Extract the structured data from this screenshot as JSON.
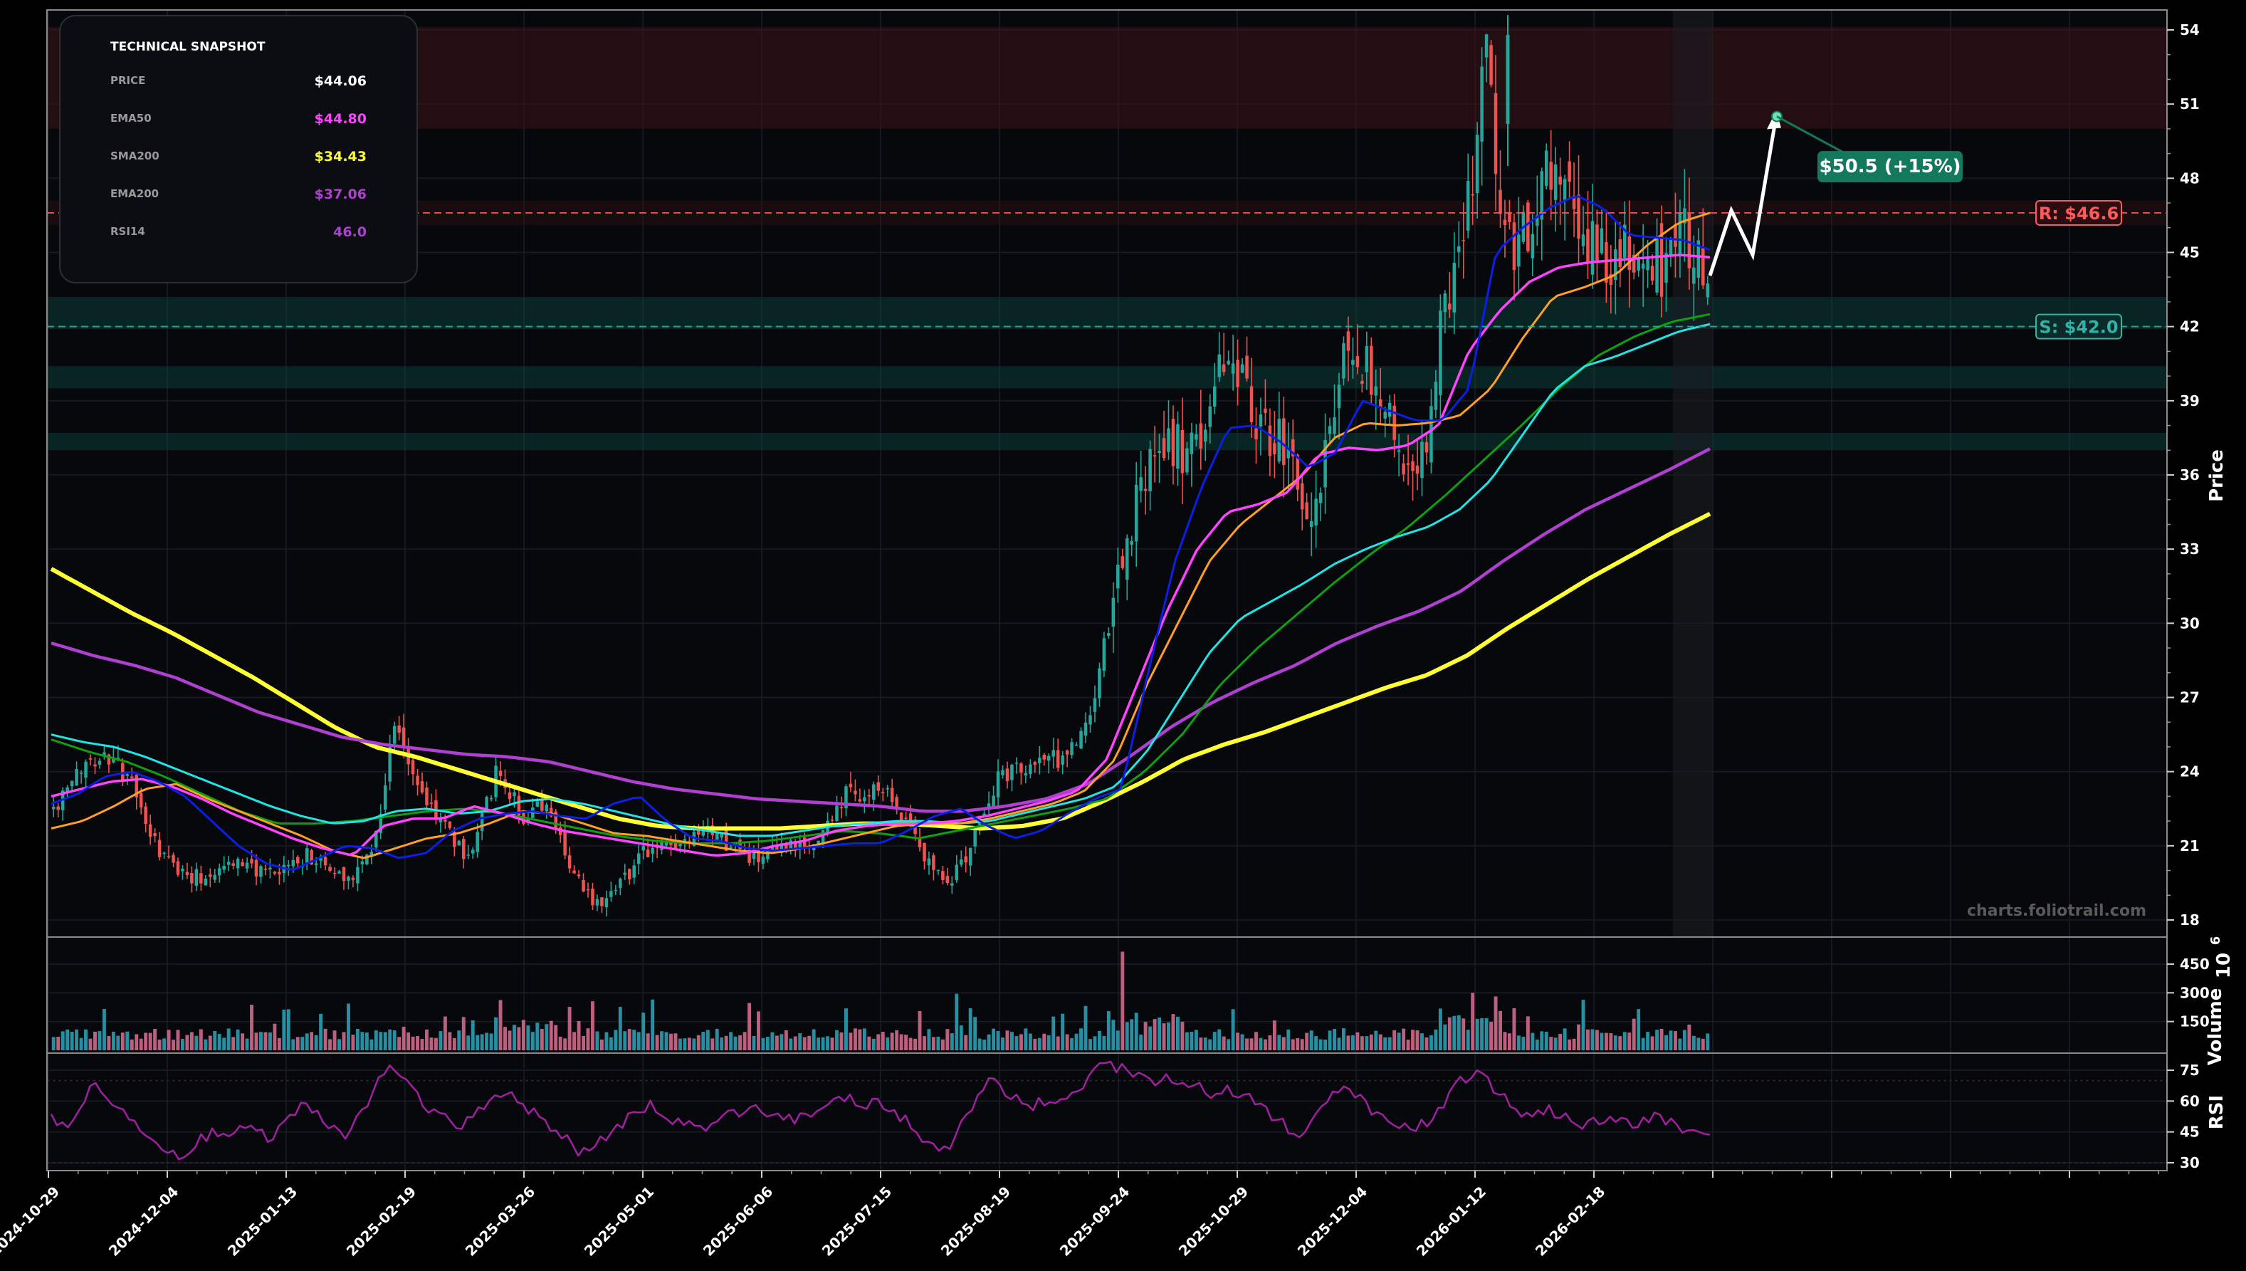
{
  "snapshot": {
    "title": "TECHNICAL SNAPSHOT",
    "rows": [
      {
        "key": "PRICE",
        "value": "$44.06",
        "color": "#ffffff"
      },
      {
        "key": "EMA50",
        "value": "$44.80",
        "color": "#ff44ff"
      },
      {
        "key": "SMA200",
        "value": "$34.43",
        "color": "#ffff33"
      },
      {
        "key": "EMA200",
        "value": "$37.06",
        "color": "#b040d0"
      },
      {
        "key": "RSI14",
        "value": "46.0",
        "color": "#b040d0"
      }
    ]
  },
  "watermark": "charts.foliotrail.com",
  "resistance_label": "R: $46.6",
  "support_label": "S: $42.0",
  "target_label": "$50.5 (+15%)",
  "colors": {
    "background": "#07080c",
    "up": "#26a69a",
    "down": "#ef5350",
    "resistance": "#ff5a5a",
    "support": "#2fb5a5",
    "target": "#14785c",
    "rsi": "#a020a0"
  },
  "chart_data": {
    "type": "line",
    "x_tick_labels": [
      "2024-10-29",
      "2024-12-04",
      "2025-01-13",
      "2025-02-19",
      "2025-03-26",
      "2025-05-01",
      "2025-06-06",
      "2025-07-15",
      "2025-08-19",
      "2025-09-24",
      "2025-10-29",
      "2025-12-04",
      "2026-01-12",
      "2026-02-18"
    ],
    "price_panel": {
      "ylabel": "Price",
      "ylim": [
        17.5,
        55
      ],
      "yticks": [
        18,
        21,
        24,
        27,
        30,
        33,
        36,
        39,
        42,
        45,
        48,
        51,
        54
      ],
      "close": [
        22.5,
        23.2,
        24.3,
        24.7,
        24.4,
        23.8,
        22.4,
        20.8,
        20.2,
        19.9,
        19.7,
        20.1,
        20.4,
        20.3,
        19.9,
        19.7,
        20.2,
        20.6,
        20.4,
        19.9,
        19.8,
        20.3,
        21.8,
        25.9,
        24.5,
        23.0,
        22.3,
        21.4,
        20.4,
        22.3,
        23.9,
        23.1,
        21.9,
        22.6,
        22.0,
        20.2,
        19.0,
        18.8,
        19.5,
        20.0,
        20.7,
        21.1,
        20.9,
        21.0,
        21.5,
        21.3,
        21.0,
        20.6,
        20.4,
        20.7,
        20.9,
        20.9,
        21.4,
        22.5,
        23.3,
        22.9,
        23.4,
        22.6,
        22.1,
        20.6,
        20.0,
        19.7,
        21.0,
        22.5,
        23.7,
        24.2,
        24.2,
        24.5,
        24.5,
        25.0,
        25.8,
        28.5,
        31.5,
        34.0,
        36.0,
        36.8,
        37.3,
        36.8,
        38.1,
        40.6,
        40.5,
        38.8,
        37.6,
        37.2,
        36.0,
        34.6,
        36.2,
        39.4,
        41.8,
        40.0,
        38.4,
        37.2,
        36.3,
        37.5,
        42.4,
        44.8,
        47.8,
        52.8,
        46.0,
        45.3,
        46.6,
        48.9,
        48.9,
        46.9,
        45.2,
        44.6,
        45.4,
        44.0,
        44.7,
        44.0,
        46.8,
        45.2,
        44.1
      ],
      "series": [
        {
          "name": "EMA20",
          "color": "#0b1fe6",
          "values": [
            22.7,
            23.1,
            23.8,
            24.0,
            23.6,
            23.0,
            22.0,
            21.0,
            20.3,
            20.0,
            20.5,
            21.0,
            20.9,
            20.5,
            20.7,
            21.6,
            22.1,
            22.3,
            22.4,
            22.2,
            22.1,
            22.7,
            23.0,
            22.0,
            21.3,
            21.2,
            20.9,
            20.8,
            20.9,
            21.0,
            21.1,
            21.1,
            21.6,
            22.2,
            22.5,
            21.8,
            21.3,
            21.6,
            22.3,
            22.9,
            23.3,
            28.0,
            32.5,
            35.5,
            37.9,
            38.0,
            37.3,
            36.3,
            36.9,
            39.0,
            38.6,
            38.2,
            38.2,
            39.5,
            45.0,
            46.0,
            46.8,
            47.3,
            46.8,
            45.7,
            45.6,
            45.5,
            45.1
          ]
        },
        {
          "name": "EMA50",
          "color": "#ff44ff",
          "values": [
            23.0,
            23.3,
            23.6,
            23.7,
            23.4,
            22.9,
            22.3,
            21.8,
            21.3,
            20.9,
            20.6,
            21.8,
            22.1,
            22.1,
            22.6,
            22.3,
            21.9,
            21.6,
            21.4,
            21.2,
            21.0,
            20.8,
            20.6,
            20.7,
            21.0,
            21.2,
            21.6,
            21.8,
            21.9,
            21.9,
            22.0,
            22.2,
            22.5,
            22.8,
            23.2,
            24.5,
            27.5,
            30.5,
            33.0,
            34.5,
            34.8,
            35.3,
            36.8,
            37.1,
            37.0,
            37.2,
            38.0,
            41.0,
            42.6,
            43.8,
            44.4,
            44.6,
            44.7,
            44.8,
            44.9,
            44.8
          ]
        },
        {
          "name": "EMA34",
          "color": "#ffa024",
          "values": [
            21.7,
            22.0,
            22.6,
            23.3,
            23.5,
            22.9,
            22.4,
            21.9,
            21.4,
            20.8,
            20.5,
            20.9,
            21.3,
            21.5,
            21.9,
            22.4,
            22.3,
            21.9,
            21.5,
            21.4,
            21.2,
            21.0,
            20.8,
            20.7,
            20.9,
            21.2,
            21.5,
            21.8,
            21.9,
            21.9,
            22.1,
            22.4,
            22.7,
            23.2,
            24.5,
            27.5,
            30.0,
            32.5,
            34.0,
            35.0,
            36.0,
            37.5,
            38.1,
            38.0,
            38.1,
            38.4,
            39.5,
            41.5,
            43.2,
            43.6,
            44.1,
            45.3,
            46.2,
            46.6
          ]
        },
        {
          "name": "EMA100",
          "color": "#1fe6e6",
          "values": [
            25.5,
            25.2,
            25.0,
            24.6,
            24.1,
            23.6,
            23.1,
            22.6,
            22.2,
            21.9,
            22.0,
            22.4,
            22.5,
            22.3,
            22.4,
            22.8,
            22.9,
            22.7,
            22.4,
            22.1,
            21.8,
            21.6,
            21.4,
            21.4,
            21.6,
            21.8,
            21.9,
            22.0,
            22.0,
            21.9,
            22.0,
            22.3,
            22.6,
            22.9,
            23.4,
            24.8,
            26.8,
            28.8,
            30.2,
            30.9,
            31.6,
            32.4,
            33.0,
            33.5,
            33.9,
            34.6,
            35.8,
            37.6,
            39.4,
            40.4,
            40.8,
            41.3,
            41.8,
            42.1
          ]
        },
        {
          "name": "EMA150",
          "color": "#0fa00f",
          "values": [
            25.3,
            24.8,
            24.4,
            23.8,
            23.1,
            22.4,
            21.9,
            21.9,
            22.0,
            22.2,
            22.4,
            22.5,
            22.3,
            22.0,
            21.7,
            21.4,
            21.2,
            21.1,
            21.1,
            21.2,
            21.4,
            21.6,
            21.5,
            21.3,
            21.6,
            21.9,
            22.2,
            22.5,
            22.9,
            24.0,
            25.5,
            27.5,
            29.0,
            30.3,
            31.6,
            32.8,
            33.9,
            35.2,
            36.6,
            38.0,
            39.5,
            40.8,
            41.6,
            42.2,
            42.5
          ]
        },
        {
          "name": "EMA200",
          "color": "#b040d0",
          "values": [
            29.2,
            28.7,
            28.3,
            27.8,
            27.1,
            26.4,
            25.9,
            25.4,
            25.1,
            24.9,
            24.7,
            24.6,
            24.4,
            24.0,
            23.6,
            23.3,
            23.1,
            22.9,
            22.8,
            22.7,
            22.6,
            22.4,
            22.4,
            22.6,
            22.9,
            23.5,
            24.6,
            25.8,
            26.8,
            27.6,
            28.3,
            29.2,
            29.9,
            30.5,
            31.3,
            32.5,
            33.6,
            34.6,
            35.4,
            36.2,
            37.06
          ]
        },
        {
          "name": "SMA200",
          "color": "#ffff33",
          "values": [
            32.2,
            31.3,
            30.4,
            29.6,
            28.7,
            27.8,
            26.8,
            25.8,
            25.0,
            24.6,
            24.1,
            23.6,
            23.1,
            22.6,
            22.1,
            21.8,
            21.7,
            21.7,
            21.7,
            21.8,
            21.9,
            21.9,
            21.8,
            21.7,
            21.8,
            22.1,
            22.8,
            23.6,
            24.5,
            25.1,
            25.6,
            26.2,
            26.8,
            27.4,
            27.9,
            28.7,
            29.8,
            30.8,
            31.8,
            32.7,
            33.6,
            34.43
          ]
        }
      ],
      "resistance": 46.6,
      "support": 42.0,
      "resistance_zone": [
        50.0,
        54.0
      ],
      "support_zones": [
        [
          41.9,
          43.2
        ],
        [
          39.5,
          40.4
        ],
        [
          37.0,
          37.7
        ]
      ],
      "projection": [
        44.06,
        46.7,
        44.9,
        50.5
      ],
      "target": 50.5
    },
    "volume_panel": {
      "ylabel": "Volume",
      "unit_label": "10",
      "unit_exponent": "6",
      "yticks": [
        150,
        300,
        450
      ],
      "ylim": [
        0,
        560
      ]
    },
    "rsi_panel": {
      "ylabel": "RSI",
      "yticks": [
        30,
        45,
        60,
        75
      ],
      "ylim": [
        28,
        82
      ],
      "values": [
        55,
        45,
        60,
        68,
        60,
        55,
        48,
        42,
        35,
        33,
        40,
        45,
        44,
        48,
        45,
        42,
        50,
        58,
        54,
        48,
        44,
        52,
        65,
        78,
        70,
        62,
        55,
        50,
        48,
        55,
        62,
        66,
        58,
        55,
        48,
        42,
        35,
        38,
        45,
        50,
        55,
        58,
        52,
        50,
        48,
        47,
        52,
        55,
        58,
        54,
        50,
        52,
        55,
        60,
        62,
        58,
        60,
        56,
        52,
        45,
        38,
        35,
        48,
        60,
        70,
        64,
        60,
        58,
        60,
        62,
        64,
        75,
        78,
        76,
        72,
        70,
        72,
        66,
        68,
        62,
        66,
        64,
        60,
        54,
        48,
        44,
        50,
        60,
        70,
        62,
        56,
        52,
        48,
        46,
        52,
        60,
        70,
        75,
        68,
        62,
        55,
        54,
        56,
        52,
        48,
        50,
        52,
        50,
        48,
        52,
        50,
        46,
        48,
        46
      ]
    }
  }
}
